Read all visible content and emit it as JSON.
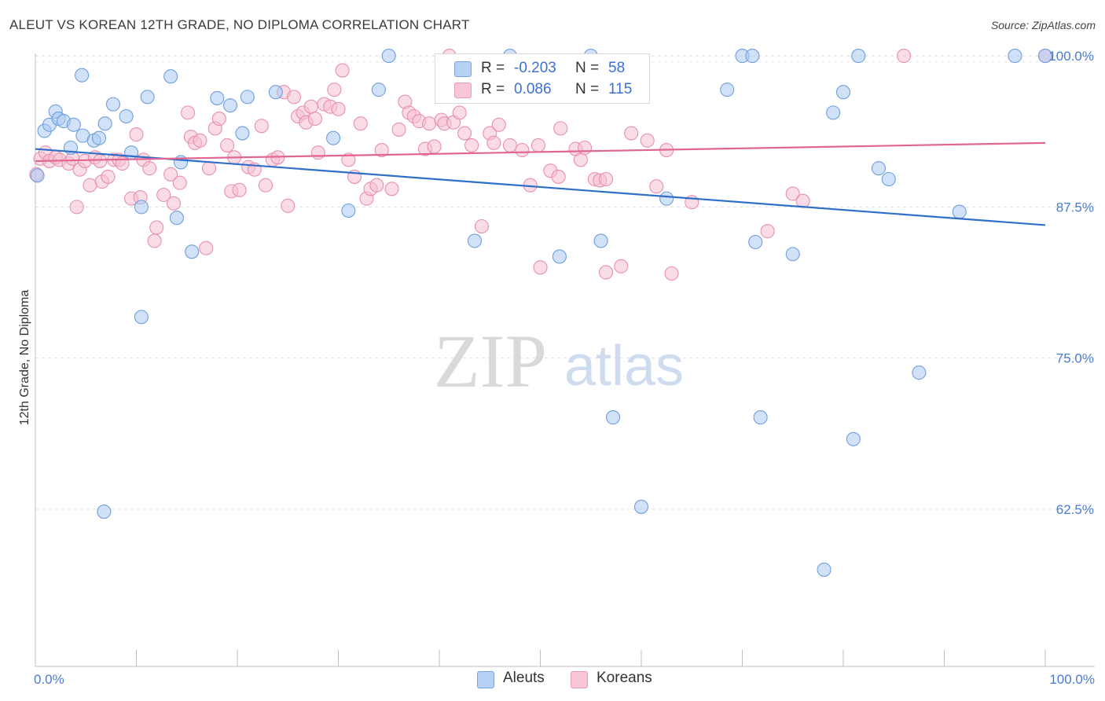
{
  "title": "ALEUT VS KOREAN 12TH GRADE, NO DIPLOMA CORRELATION CHART",
  "source": "Source: ZipAtlas.com",
  "watermark": {
    "zip": "ZIP",
    "atlas": "atlas"
  },
  "legend": {
    "rows": [
      {
        "r_label": "R =",
        "r_value": "-0.203",
        "n_label": "N =",
        "n_value": "58"
      },
      {
        "r_label": "R =",
        "r_value": "0.086",
        "n_label": "N =",
        "n_value": "115"
      }
    ]
  },
  "bottom_legend": [
    "Aleuts",
    "Koreans"
  ],
  "colors": {
    "aleut_fill": "#a9c8f2",
    "aleut_stroke": "#6f9fde",
    "aleut_line": "#2f6fc8",
    "korean_fill": "#f6bfd1",
    "korean_stroke": "#e890ac",
    "korean_line": "#e06591",
    "tick_text": "#4a7bd0"
  },
  "chart_data": {
    "type": "scatter",
    "title": "ALEUT VS KOREAN 12TH GRADE, NO DIPLOMA CORRELATION CHART",
    "xlabel": "",
    "ylabel": "12th Grade, No Diploma",
    "xlim": [
      0,
      100
    ],
    "ylim": [
      49.5,
      101.5
    ],
    "x_tick_labels": [
      "0.0%",
      "100.0%"
    ],
    "y_ticks": [
      62.5,
      75.0,
      87.5,
      100.0
    ],
    "y_tick_labels": [
      "62.5%",
      "75.0%",
      "87.5%",
      "100.0%"
    ],
    "grid": "horizontal dashed",
    "legend_position": "top-center",
    "series": [
      {
        "name": "Aleuts",
        "r": -0.203,
        "n": 58,
        "trend": [
          [
            0,
            92.3
          ],
          [
            100,
            86.0
          ]
        ],
        "points": [
          [
            0.2,
            90.1
          ],
          [
            0.9,
            93.8
          ],
          [
            1.4,
            94.3
          ],
          [
            2.0,
            95.4
          ],
          [
            2.3,
            94.8
          ],
          [
            2.8,
            94.6
          ],
          [
            3.5,
            92.4
          ],
          [
            3.8,
            94.3
          ],
          [
            4.6,
            98.4
          ],
          [
            4.7,
            93.4
          ],
          [
            5.8,
            93.0
          ],
          [
            6.3,
            93.2
          ],
          [
            6.9,
            94.4
          ],
          [
            7.7,
            96.0
          ],
          [
            9.0,
            95.0
          ],
          [
            9.5,
            92.0
          ],
          [
            10.5,
            87.5
          ],
          [
            10.5,
            78.4
          ],
          [
            11.1,
            96.6
          ],
          [
            13.4,
            98.3
          ],
          [
            14.0,
            86.6
          ],
          [
            14.4,
            91.2
          ],
          [
            15.5,
            83.8
          ],
          [
            18.0,
            96.5
          ],
          [
            19.3,
            95.9
          ],
          [
            20.5,
            93.6
          ],
          [
            21.0,
            96.6
          ],
          [
            23.8,
            97.0
          ],
          [
            29.5,
            93.2
          ],
          [
            31.0,
            87.2
          ],
          [
            34.0,
            97.2
          ],
          [
            35.0,
            100.0
          ],
          [
            43.5,
            84.7
          ],
          [
            47.0,
            100.0
          ],
          [
            51.9,
            83.4
          ],
          [
            55.0,
            100.0
          ],
          [
            56.0,
            84.7
          ],
          [
            57.2,
            70.1
          ],
          [
            60.0,
            62.7
          ],
          [
            62.5,
            88.2
          ],
          [
            68.5,
            97.2
          ],
          [
            70.0,
            100.0
          ],
          [
            71.0,
            100.0
          ],
          [
            71.3,
            84.6
          ],
          [
            71.8,
            70.1
          ],
          [
            75.0,
            83.6
          ],
          [
            78.1,
            57.5
          ],
          [
            79.0,
            95.3
          ],
          [
            80.0,
            97.0
          ],
          [
            81.0,
            68.3
          ],
          [
            81.5,
            100.0
          ],
          [
            83.5,
            90.7
          ],
          [
            84.5,
            89.8
          ],
          [
            87.5,
            73.8
          ],
          [
            91.5,
            87.1
          ],
          [
            97.0,
            100.0
          ],
          [
            100.0,
            100.0
          ],
          [
            6.8,
            62.3
          ]
        ]
      },
      {
        "name": "Koreans",
        "r": 0.086,
        "n": 115,
        "trend": [
          [
            0,
            91.3
          ],
          [
            100,
            92.8
          ]
        ],
        "points": [
          [
            0.1,
            90.2
          ],
          [
            0.5,
            91.5
          ],
          [
            1.0,
            92.0
          ],
          [
            1.4,
            91.3
          ],
          [
            2.0,
            91.6
          ],
          [
            2.4,
            91.4
          ],
          [
            3.3,
            91.1
          ],
          [
            3.7,
            91.5
          ],
          [
            4.1,
            87.5
          ],
          [
            4.4,
            90.6
          ],
          [
            4.9,
            91.3
          ],
          [
            5.4,
            89.3
          ],
          [
            5.9,
            91.6
          ],
          [
            6.4,
            91.3
          ],
          [
            6.6,
            89.6
          ],
          [
            7.2,
            90.0
          ],
          [
            7.8,
            91.4
          ],
          [
            8.3,
            91.4
          ],
          [
            8.6,
            91.1
          ],
          [
            9.5,
            88.2
          ],
          [
            10.0,
            93.5
          ],
          [
            10.4,
            88.3
          ],
          [
            10.7,
            91.4
          ],
          [
            11.3,
            90.7
          ],
          [
            11.8,
            84.7
          ],
          [
            12.0,
            85.8
          ],
          [
            12.7,
            88.5
          ],
          [
            13.4,
            90.2
          ],
          [
            13.7,
            87.8
          ],
          [
            14.3,
            89.5
          ],
          [
            15.1,
            95.3
          ],
          [
            15.4,
            93.3
          ],
          [
            15.8,
            92.8
          ],
          [
            16.3,
            93.0
          ],
          [
            16.9,
            84.1
          ],
          [
            17.2,
            90.7
          ],
          [
            17.8,
            94.0
          ],
          [
            18.2,
            94.8
          ],
          [
            19.0,
            92.6
          ],
          [
            19.4,
            88.8
          ],
          [
            19.7,
            91.6
          ],
          [
            20.2,
            88.9
          ],
          [
            21.1,
            90.8
          ],
          [
            21.7,
            90.6
          ],
          [
            22.4,
            94.2
          ],
          [
            22.8,
            89.3
          ],
          [
            23.5,
            91.4
          ],
          [
            24.0,
            91.6
          ],
          [
            24.6,
            97.0
          ],
          [
            25.0,
            87.6
          ],
          [
            25.6,
            96.6
          ],
          [
            26.0,
            95.0
          ],
          [
            26.5,
            95.3
          ],
          [
            26.8,
            94.5
          ],
          [
            27.3,
            95.8
          ],
          [
            27.7,
            94.8
          ],
          [
            28.0,
            92.0
          ],
          [
            28.6,
            96.0
          ],
          [
            29.2,
            95.8
          ],
          [
            29.6,
            97.2
          ],
          [
            30.0,
            95.6
          ],
          [
            30.4,
            98.8
          ],
          [
            31.0,
            91.4
          ],
          [
            31.6,
            90.0
          ],
          [
            32.2,
            94.4
          ],
          [
            32.8,
            88.2
          ],
          [
            33.2,
            89.0
          ],
          [
            33.8,
            89.3
          ],
          [
            34.3,
            92.2
          ],
          [
            35.3,
            89.0
          ],
          [
            36.0,
            93.9
          ],
          [
            36.6,
            96.2
          ],
          [
            37.0,
            95.3
          ],
          [
            37.5,
            95.0
          ],
          [
            38.0,
            94.6
          ],
          [
            38.6,
            92.3
          ],
          [
            39.0,
            94.4
          ],
          [
            39.5,
            92.5
          ],
          [
            40.2,
            94.7
          ],
          [
            40.5,
            94.4
          ],
          [
            41.0,
            100.0
          ],
          [
            41.4,
            94.5
          ],
          [
            42.0,
            95.3
          ],
          [
            42.5,
            93.6
          ],
          [
            43.2,
            92.6
          ],
          [
            44.2,
            85.9
          ],
          [
            45.0,
            93.6
          ],
          [
            45.4,
            92.8
          ],
          [
            45.9,
            94.3
          ],
          [
            46.5,
            96.8
          ],
          [
            47.0,
            92.6
          ],
          [
            48.2,
            92.2
          ],
          [
            49.0,
            89.3
          ],
          [
            49.8,
            92.6
          ],
          [
            50.0,
            82.5
          ],
          [
            51.0,
            90.5
          ],
          [
            51.8,
            90.0
          ],
          [
            52.0,
            94.0
          ],
          [
            53.5,
            92.3
          ],
          [
            54.0,
            91.4
          ],
          [
            54.4,
            92.4
          ],
          [
            55.4,
            89.8
          ],
          [
            55.9,
            89.7
          ],
          [
            56.5,
            89.8
          ],
          [
            58.0,
            82.6
          ],
          [
            59.0,
            93.6
          ],
          [
            60.6,
            93.0
          ],
          [
            61.5,
            89.2
          ],
          [
            62.5,
            92.2
          ],
          [
            63.0,
            82.0
          ],
          [
            65.0,
            87.9
          ],
          [
            72.5,
            85.5
          ],
          [
            75.0,
            88.6
          ],
          [
            76.0,
            88.0
          ],
          [
            86.0,
            100.0
          ],
          [
            100.0,
            100.0
          ],
          [
            56.5,
            82.1
          ]
        ]
      }
    ]
  }
}
